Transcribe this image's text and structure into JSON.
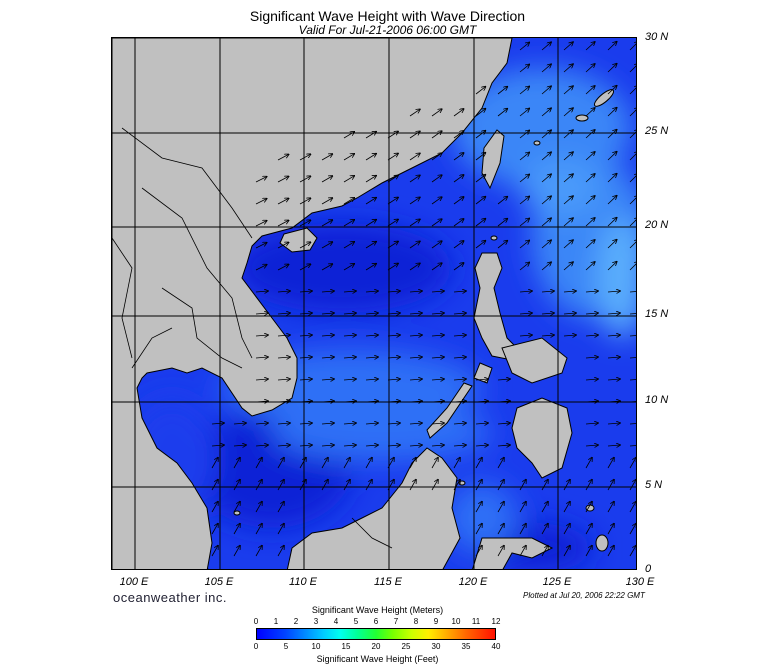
{
  "title": "Significant Wave Height with Wave Direction",
  "subtitle": "Valid For Jul-21-2006 06:00 GMT",
  "lat_labels": [
    "30 N",
    "25 N",
    "20 N",
    "15 N",
    "10 N",
    "5 N",
    "0"
  ],
  "lon_labels": [
    "100 E",
    "105 E",
    "110 E",
    "115 E",
    "120 E",
    "125 E",
    "130 E"
  ],
  "brand": "oceanweather inc.",
  "plotted": "Plotted at Jul 20, 2006 22:22 GMT",
  "colorbar": {
    "meters_title": "Significant Wave Height (Meters)",
    "feet_title": "Significant Wave Height (Feet)",
    "meters_ticks": [
      "0",
      "1",
      "2",
      "3",
      "4",
      "5",
      "6",
      "7",
      "8",
      "9",
      "10",
      "11",
      "12"
    ],
    "feet_ticks": [
      "0",
      "5",
      "10",
      "15",
      "20",
      "25",
      "30",
      "35",
      "40"
    ]
  },
  "colors": {
    "land": "#c0c0c0",
    "sea_low": "#0a1fe0",
    "sea_mid": "#2f6cf5",
    "sea_high": "#57a9ff",
    "grid": "#000000"
  },
  "map_extent": {
    "lon_min": 99,
    "lon_max": 130,
    "lat_min": 0,
    "lat_max": 30
  }
}
